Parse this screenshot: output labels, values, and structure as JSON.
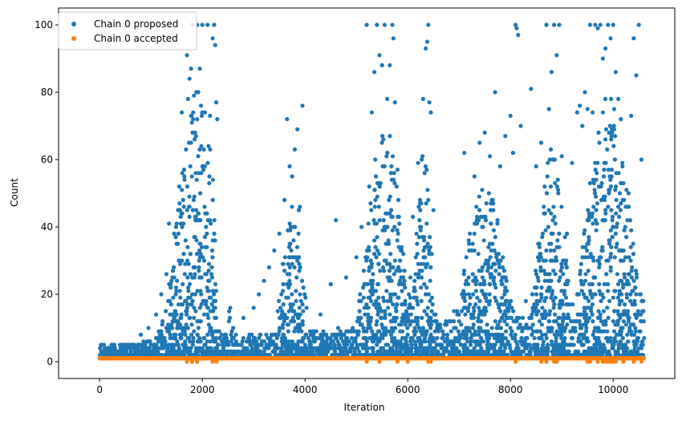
{
  "chart_data": {
    "type": "scatter",
    "xlabel": "Iteration",
    "ylabel": "Count",
    "xlim": [
      -800,
      11200
    ],
    "ylim": [
      -5,
      105
    ],
    "x_ticks": [
      0,
      2000,
      4000,
      6000,
      8000,
      10000
    ],
    "y_ticks": [
      0,
      20,
      40,
      60,
      80,
      100
    ],
    "grid": false,
    "legend_position": "top-left",
    "n_iterations": 10600,
    "series": [
      {
        "name": "Chain 0 proposed",
        "color": "#1f77b4",
        "points": [
          [
            300,
            2
          ],
          [
            450,
            3
          ],
          [
            600,
            5
          ],
          [
            800,
            8
          ],
          [
            950,
            10
          ],
          [
            1100,
            14
          ],
          [
            1200,
            20
          ],
          [
            1300,
            26
          ],
          [
            1350,
            41
          ],
          [
            1400,
            24
          ],
          [
            1450,
            38
          ],
          [
            1500,
            35
          ],
          [
            1550,
            52
          ],
          [
            1600,
            74
          ],
          [
            1650,
            55
          ],
          [
            1700,
            91
          ],
          [
            1720,
            78
          ],
          [
            1750,
            84
          ],
          [
            1780,
            87
          ],
          [
            1800,
            100
          ],
          [
            1820,
            72
          ],
          [
            1850,
            66
          ],
          [
            1870,
            56
          ],
          [
            1900,
            100
          ],
          [
            1920,
            80
          ],
          [
            1950,
            87
          ],
          [
            2000,
            100
          ],
          [
            2050,
            74
          ],
          [
            2100,
            100
          ],
          [
            2150,
            73
          ],
          [
            2200,
            96
          ],
          [
            2230,
            100
          ],
          [
            2250,
            94
          ],
          [
            2270,
            77
          ],
          [
            2290,
            72
          ],
          [
            2600,
            10
          ],
          [
            2800,
            13
          ],
          [
            3000,
            16
          ],
          [
            3100,
            20
          ],
          [
            3200,
            24
          ],
          [
            3300,
            28
          ],
          [
            3400,
            33
          ],
          [
            3500,
            38
          ],
          [
            3600,
            48
          ],
          [
            3650,
            72
          ],
          [
            3700,
            58
          ],
          [
            3750,
            55
          ],
          [
            3800,
            63
          ],
          [
            3850,
            69
          ],
          [
            3880,
            45
          ],
          [
            3900,
            46
          ],
          [
            3950,
            76
          ],
          [
            4300,
            14
          ],
          [
            4500,
            23
          ],
          [
            4600,
            42
          ],
          [
            4800,
            25
          ],
          [
            5000,
            31
          ],
          [
            5100,
            40
          ],
          [
            5200,
            100
          ],
          [
            5250,
            52
          ],
          [
            5300,
            74
          ],
          [
            5350,
            86
          ],
          [
            5400,
            100
          ],
          [
            5450,
            91
          ],
          [
            5500,
            88
          ],
          [
            5550,
            100
          ],
          [
            5600,
            78
          ],
          [
            5650,
            88
          ],
          [
            5700,
            100
          ],
          [
            5720,
            96
          ],
          [
            5750,
            77
          ],
          [
            5800,
            57
          ],
          [
            5850,
            30
          ],
          [
            5950,
            18
          ],
          [
            6050,
            25
          ],
          [
            6100,
            43
          ],
          [
            6200,
            59
          ],
          [
            6300,
            78
          ],
          [
            6350,
            93
          ],
          [
            6380,
            95
          ],
          [
            6400,
            100
          ],
          [
            6420,
            77
          ],
          [
            6450,
            74
          ],
          [
            6500,
            45
          ],
          [
            6700,
            8
          ],
          [
            6900,
            15
          ],
          [
            7100,
            62
          ],
          [
            7300,
            55
          ],
          [
            7400,
            65
          ],
          [
            7500,
            68
          ],
          [
            7600,
            61
          ],
          [
            7700,
            80
          ],
          [
            7800,
            58
          ],
          [
            7900,
            67
          ],
          [
            8000,
            73
          ],
          [
            8050,
            62
          ],
          [
            8100,
            100
          ],
          [
            8120,
            99
          ],
          [
            8150,
            97
          ],
          [
            8200,
            70
          ],
          [
            8300,
            18
          ],
          [
            8400,
            81
          ],
          [
            8500,
            58
          ],
          [
            8600,
            65
          ],
          [
            8700,
            100
          ],
          [
            8750,
            75
          ],
          [
            8800,
            86
          ],
          [
            8850,
            100
          ],
          [
            8900,
            91
          ],
          [
            8950,
            100
          ],
          [
            9000,
            61
          ],
          [
            9100,
            38
          ],
          [
            9200,
            59
          ],
          [
            9300,
            74
          ],
          [
            9350,
            76
          ],
          [
            9400,
            70
          ],
          [
            9450,
            80
          ],
          [
            9500,
            75
          ],
          [
            9550,
            100
          ],
          [
            9600,
            74
          ],
          [
            9650,
            100
          ],
          [
            9700,
            99
          ],
          [
            9750,
            100
          ],
          [
            9800,
            90
          ],
          [
            9850,
            93
          ],
          [
            9900,
            100
          ],
          [
            9950,
            96
          ],
          [
            10000,
            100
          ],
          [
            10050,
            86
          ],
          [
            10100,
            78
          ],
          [
            10150,
            72
          ],
          [
            10200,
            30
          ],
          [
            10300,
            50
          ],
          [
            10350,
            73
          ],
          [
            10400,
            96
          ],
          [
            10450,
            85
          ],
          [
            10500,
            100
          ],
          [
            10550,
            60
          ]
        ]
      },
      {
        "name": "Chain 0 accepted",
        "color": "#ff7f0e",
        "constant_value": 1,
        "drop_points": [
          [
            1700,
            0
          ],
          [
            1800,
            0
          ],
          [
            1900,
            0
          ],
          [
            2200,
            0
          ],
          [
            2280,
            0
          ],
          [
            5200,
            0
          ],
          [
            5450,
            0
          ],
          [
            5800,
            0
          ],
          [
            6000,
            0
          ],
          [
            6400,
            0
          ],
          [
            6450,
            0
          ],
          [
            8100,
            0
          ],
          [
            8600,
            0
          ],
          [
            8700,
            0
          ],
          [
            8850,
            0
          ],
          [
            8900,
            0
          ],
          [
            9500,
            0
          ],
          [
            9550,
            0
          ],
          [
            9700,
            0
          ],
          [
            9800,
            0
          ],
          [
            9850,
            0
          ],
          [
            9900,
            0
          ],
          [
            9950,
            0
          ],
          [
            10000,
            0
          ],
          [
            10050,
            0
          ],
          [
            10200,
            0
          ],
          [
            10400,
            0
          ],
          [
            10550,
            0
          ]
        ]
      }
    ]
  }
}
